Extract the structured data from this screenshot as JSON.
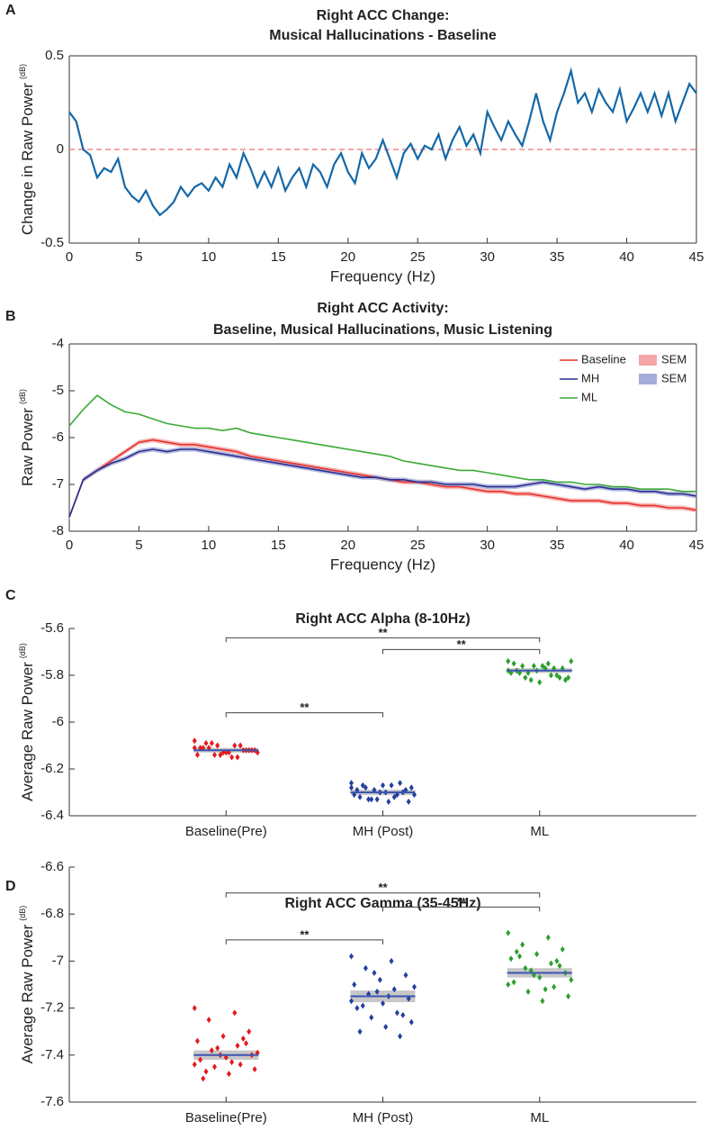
{
  "chart_data": [
    {
      "type": "line",
      "panel_label": "A",
      "title": [
        "Right ACC Change:",
        "Musical Hallucinations - Baseline"
      ],
      "x_label": "Frequency (Hz)",
      "y_label": "Change in Raw Power",
      "y_unit": "(dB)",
      "xlim": [
        0,
        45
      ],
      "xticks": [
        0,
        5,
        10,
        15,
        20,
        25,
        30,
        35,
        40,
        45
      ],
      "ylim": [
        -0.5,
        0.5
      ],
      "yticks": [
        -0.5,
        0,
        0.5
      ],
      "reference_line": {
        "value": 0,
        "color": "#f07070"
      },
      "x": [
        0,
        0.5,
        1,
        1.5,
        2,
        2.5,
        3,
        3.5,
        4,
        4.5,
        5,
        5.5,
        6,
        6.5,
        7,
        7.5,
        8,
        8.5,
        9,
        9.5,
        10,
        10.5,
        11,
        11.5,
        12,
        12.5,
        13,
        13.5,
        14,
        14.5,
        15,
        15.5,
        16,
        16.5,
        17,
        17.5,
        18,
        18.5,
        19,
        19.5,
        20,
        20.5,
        21,
        21.5,
        22,
        22.5,
        23,
        23.5,
        24,
        24.5,
        25,
        25.5,
        26,
        26.5,
        27,
        27.5,
        28,
        28.5,
        29,
        29.5,
        30,
        30.5,
        31,
        31.5,
        32,
        32.5,
        33,
        33.5,
        34,
        34.5,
        35,
        35.5,
        36,
        36.5,
        37,
        37.5,
        38,
        38.5,
        39,
        39.5,
        40,
        40.5,
        41,
        41.5,
        42,
        42.5,
        43,
        43.5,
        44,
        44.5,
        45
      ],
      "series": [
        {
          "color": "#1468a8",
          "values": [
            0.2,
            0.15,
            0.0,
            -0.03,
            -0.15,
            -0.1,
            -0.12,
            -0.05,
            -0.2,
            -0.25,
            -0.28,
            -0.22,
            -0.3,
            -0.35,
            -0.32,
            -0.28,
            -0.2,
            -0.25,
            -0.2,
            -0.18,
            -0.22,
            -0.15,
            -0.2,
            -0.08,
            -0.15,
            -0.02,
            -0.1,
            -0.2,
            -0.12,
            -0.2,
            -0.1,
            -0.22,
            -0.15,
            -0.1,
            -0.2,
            -0.08,
            -0.12,
            -0.2,
            -0.08,
            -0.02,
            -0.12,
            -0.18,
            -0.02,
            -0.1,
            -0.05,
            0.05,
            -0.05,
            -0.15,
            -0.02,
            0.03,
            -0.05,
            0.02,
            0.0,
            0.08,
            -0.05,
            0.05,
            0.12,
            0.02,
            0.08,
            -0.02,
            0.2,
            0.12,
            0.05,
            0.15,
            0.08,
            0.02,
            0.15,
            0.3,
            0.15,
            0.05,
            0.2,
            0.3,
            0.42,
            0.25,
            0.3,
            0.2,
            0.32,
            0.25,
            0.2,
            0.32,
            0.15,
            0.22,
            0.3,
            0.2,
            0.3,
            0.18,
            0.3,
            0.15,
            0.25,
            0.35,
            0.3
          ]
        }
      ]
    },
    {
      "type": "line",
      "panel_label": "B",
      "title": [
        "Right ACC Activity:",
        "Baseline, Musical Hallucinations, Music Listening"
      ],
      "x_label": "Frequency (Hz)",
      "y_label": "Raw Power",
      "y_unit": "(dB)",
      "xlim": [
        0,
        45
      ],
      "xticks": [
        0,
        5,
        10,
        15,
        20,
        25,
        30,
        35,
        40,
        45
      ],
      "ylim": [
        -8,
        -4
      ],
      "yticks": [
        -8,
        -7,
        -6,
        -5,
        -4
      ],
      "x": [
        0,
        1,
        2,
        3,
        4,
        5,
        6,
        7,
        8,
        9,
        10,
        11,
        12,
        13,
        14,
        15,
        16,
        17,
        18,
        19,
        20,
        21,
        22,
        23,
        24,
        25,
        26,
        27,
        28,
        29,
        30,
        31,
        32,
        33,
        34,
        35,
        36,
        37,
        38,
        39,
        40,
        41,
        42,
        43,
        44,
        45
      ],
      "series": [
        {
          "name": "Baseline",
          "color": "#e8322c",
          "sem": 0.05,
          "sem_color": "#f4a6a6",
          "values": [
            -7.7,
            -6.9,
            -6.7,
            -6.5,
            -6.3,
            -6.1,
            -6.05,
            -6.1,
            -6.15,
            -6.15,
            -6.2,
            -6.25,
            -6.3,
            -6.4,
            -6.45,
            -6.5,
            -6.55,
            -6.6,
            -6.65,
            -6.7,
            -6.75,
            -6.8,
            -6.85,
            -6.9,
            -6.95,
            -6.95,
            -7.0,
            -7.05,
            -7.05,
            -7.1,
            -7.15,
            -7.15,
            -7.2,
            -7.2,
            -7.25,
            -7.3,
            -7.35,
            -7.35,
            -7.35,
            -7.4,
            -7.4,
            -7.45,
            -7.45,
            -7.5,
            -7.5,
            -7.55
          ]
        },
        {
          "name": "MH",
          "color": "#2b2f8f",
          "sem": 0.05,
          "sem_color": "#a6acd8",
          "values": [
            -7.7,
            -6.9,
            -6.7,
            -6.55,
            -6.45,
            -6.3,
            -6.25,
            -6.3,
            -6.25,
            -6.25,
            -6.3,
            -6.35,
            -6.4,
            -6.45,
            -6.5,
            -6.55,
            -6.6,
            -6.65,
            -6.7,
            -6.75,
            -6.8,
            -6.85,
            -6.85,
            -6.9,
            -6.9,
            -6.95,
            -6.95,
            -7.0,
            -7.0,
            -7.0,
            -7.05,
            -7.05,
            -7.05,
            -7.0,
            -6.95,
            -7.0,
            -7.05,
            -7.1,
            -7.05,
            -7.1,
            -7.1,
            -7.15,
            -7.15,
            -7.2,
            -7.2,
            -7.25
          ]
        },
        {
          "name": "ML",
          "color": "#3aaa35",
          "values": [
            -5.75,
            -5.4,
            -5.1,
            -5.3,
            -5.45,
            -5.5,
            -5.6,
            -5.7,
            -5.75,
            -5.8,
            -5.8,
            -5.85,
            -5.8,
            -5.9,
            -5.95,
            -6.0,
            -6.05,
            -6.1,
            -6.15,
            -6.2,
            -6.25,
            -6.3,
            -6.35,
            -6.4,
            -6.5,
            -6.55,
            -6.6,
            -6.65,
            -6.7,
            -6.7,
            -6.75,
            -6.8,
            -6.85,
            -6.9,
            -6.9,
            -6.95,
            -6.95,
            -7.0,
            -7.0,
            -7.05,
            -7.05,
            -7.1,
            -7.1,
            -7.1,
            -7.15,
            -7.15
          ]
        }
      ],
      "sem_legend": [
        {
          "name": "SEM",
          "color": "#f4a6a6"
        },
        {
          "name": "SEM",
          "color": "#a6acd8"
        }
      ]
    },
    {
      "type": "strip",
      "panel_label": "C",
      "title": [
        "Right ACC Alpha (8-10Hz)"
      ],
      "y_label": "Average Raw Power",
      "y_unit": "(dB)",
      "ylim": [
        -6.4,
        -5.6
      ],
      "yticks": [
        -6.4,
        -6.2,
        -6,
        -5.8,
        -5.6
      ],
      "categories": [
        "Baseline(Pre)",
        "MH (Post)",
        "ML"
      ],
      "groups": [
        {
          "color": "#e31a1c",
          "mean": -6.12,
          "sem": 0.01,
          "values": [
            -6.08,
            -6.1,
            -6.11,
            -6.12,
            -6.13,
            -6.14,
            -6.15,
            -6.09,
            -6.12,
            -6.13,
            -6.11,
            -6.1,
            -6.14,
            -6.12,
            -6.13,
            -6.11,
            -6.12,
            -6.1,
            -6.13,
            -6.15,
            -6.09,
            -6.12,
            -6.14,
            -6.11
          ]
        },
        {
          "color": "#2340a0",
          "mean": -6.3,
          "sem": 0.012,
          "values": [
            -6.26,
            -6.27,
            -6.28,
            -6.29,
            -6.3,
            -6.31,
            -6.32,
            -6.33,
            -6.34,
            -6.27,
            -6.29,
            -6.31,
            -6.33,
            -6.28,
            -6.3,
            -6.32,
            -6.26,
            -6.29,
            -6.31,
            -6.34,
            -6.27,
            -6.3,
            -6.33,
            -6.28
          ]
        },
        {
          "color": "#2ca02c",
          "mean": -5.78,
          "sem": 0.01,
          "values": [
            -5.74,
            -5.75,
            -5.76,
            -5.77,
            -5.78,
            -5.79,
            -5.8,
            -5.81,
            -5.82,
            -5.83,
            -5.75,
            -5.77,
            -5.79,
            -5.81,
            -5.76,
            -5.78,
            -5.8,
            -5.82,
            -5.74,
            -5.77,
            -5.79,
            -5.81,
            -5.76,
            -5.78
          ]
        }
      ],
      "significance": [
        {
          "from": 0,
          "to": 2,
          "y": -5.64,
          "label": "**"
        },
        {
          "from": 1,
          "to": 2,
          "y": -5.69,
          "label": "**"
        },
        {
          "from": 0,
          "to": 1,
          "y": -5.96,
          "label": "**"
        }
      ]
    },
    {
      "type": "strip",
      "panel_label": "D",
      "title": [
        "Right ACC Gamma (35-45Hz)"
      ],
      "y_label": "Average Raw Power",
      "y_unit": "(dB)",
      "ylim": [
        -7.6,
        -6.6
      ],
      "yticks": [
        -7.6,
        -7.4,
        -7.2,
        -7,
        -6.8,
        -6.6
      ],
      "categories": [
        "Baseline(Pre)",
        "MH (Post)",
        "ML"
      ],
      "groups": [
        {
          "color": "#e31a1c",
          "mean": -7.4,
          "sem": 0.02,
          "values": [
            -7.2,
            -7.22,
            -7.25,
            -7.3,
            -7.32,
            -7.34,
            -7.36,
            -7.38,
            -7.4,
            -7.41,
            -7.42,
            -7.44,
            -7.45,
            -7.46,
            -7.48,
            -7.5,
            -7.33,
            -7.37,
            -7.39,
            -7.43,
            -7.47,
            -7.35,
            -7.4,
            -7.44
          ]
        },
        {
          "color": "#2340a0",
          "mean": -7.15,
          "sem": 0.025,
          "values": [
            -6.98,
            -7.0,
            -7.03,
            -7.06,
            -7.08,
            -7.1,
            -7.12,
            -7.14,
            -7.16,
            -7.18,
            -7.2,
            -7.22,
            -7.24,
            -7.26,
            -7.28,
            -7.3,
            -7.32,
            -7.05,
            -7.11,
            -7.15,
            -7.19,
            -7.23,
            -7.13,
            -7.17
          ]
        },
        {
          "color": "#2ca02c",
          "mean": -7.05,
          "sem": 0.02,
          "values": [
            -6.88,
            -6.9,
            -6.93,
            -6.95,
            -6.97,
            -6.99,
            -7.01,
            -7.03,
            -7.05,
            -7.07,
            -7.09,
            -7.11,
            -7.13,
            -7.15,
            -7.17,
            -6.96,
            -7.0,
            -7.04,
            -7.08,
            -7.12,
            -6.98,
            -7.02,
            -7.06,
            -7.1
          ]
        }
      ],
      "significance": [
        {
          "from": 0,
          "to": 2,
          "y": -6.71,
          "label": "**"
        },
        {
          "from": 1,
          "to": 2,
          "y": -6.77,
          "label": "**"
        },
        {
          "from": 0,
          "to": 1,
          "y": -6.91,
          "label": "**"
        }
      ]
    }
  ]
}
